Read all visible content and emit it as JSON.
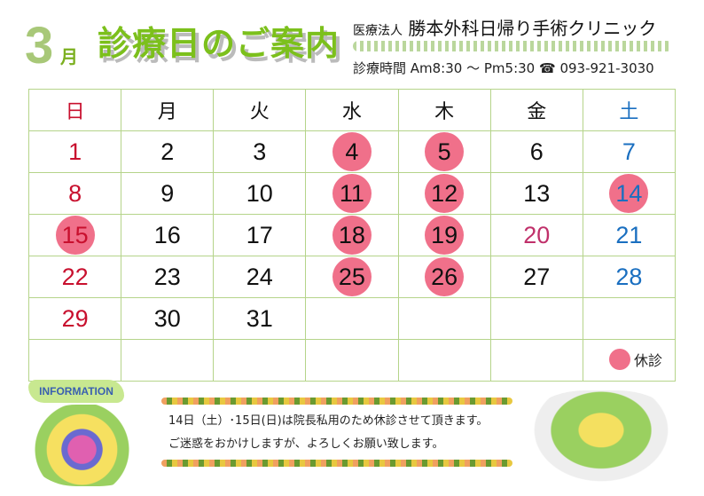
{
  "header": {
    "month_number": "3",
    "month_unit": "月",
    "title": "診療日のご案内",
    "clinic_prefix": "医療法人",
    "clinic_name": "勝本外科日帰り手術クリニック",
    "hours": "診療時間 Am8:30 ～ Pm5:30",
    "phone_icon": "phone-icon",
    "phone_glyph": "☎",
    "phone": "093-921-3030"
  },
  "colors": {
    "grid": "#b5d48a",
    "sunday": "#c8102e",
    "saturday": "#1a6fc0",
    "holiday": "#c0306a",
    "closed": "#f0708a"
  },
  "weekdays": [
    "日",
    "月",
    "火",
    "水",
    "木",
    "金",
    "土"
  ],
  "weeks": [
    [
      {
        "d": "1"
      },
      {
        "d": "2"
      },
      {
        "d": "3"
      },
      {
        "d": "4",
        "closed": true
      },
      {
        "d": "5",
        "closed": true
      },
      {
        "d": "6"
      },
      {
        "d": "7"
      }
    ],
    [
      {
        "d": "8"
      },
      {
        "d": "9"
      },
      {
        "d": "10"
      },
      {
        "d": "11",
        "closed": true
      },
      {
        "d": "12",
        "closed": true
      },
      {
        "d": "13"
      },
      {
        "d": "14",
        "closed": true
      }
    ],
    [
      {
        "d": "15",
        "closed": true
      },
      {
        "d": "16"
      },
      {
        "d": "17"
      },
      {
        "d": "18",
        "closed": true
      },
      {
        "d": "19",
        "closed": true
      },
      {
        "d": "20",
        "holiday": true
      },
      {
        "d": "21"
      }
    ],
    [
      {
        "d": "22"
      },
      {
        "d": "23"
      },
      {
        "d": "24"
      },
      {
        "d": "25",
        "closed": true
      },
      {
        "d": "26",
        "closed": true
      },
      {
        "d": "27"
      },
      {
        "d": "28"
      }
    ],
    [
      {
        "d": "29"
      },
      {
        "d": "30"
      },
      {
        "d": "31"
      },
      {
        "d": ""
      },
      {
        "d": ""
      },
      {
        "d": ""
      },
      {
        "d": ""
      }
    ],
    [
      {
        "d": ""
      },
      {
        "d": ""
      },
      {
        "d": ""
      },
      {
        "d": ""
      },
      {
        "d": ""
      },
      {
        "d": ""
      },
      {
        "d": ""
      }
    ]
  ],
  "legend": {
    "label": "休診"
  },
  "info": {
    "badge": "INFORMATION",
    "lines": [
      "14日（土）･15日(日)は院長私用のため休診させて頂きます。",
      "ご迷惑をおかけしますが、よろしくお願い致します。"
    ]
  }
}
